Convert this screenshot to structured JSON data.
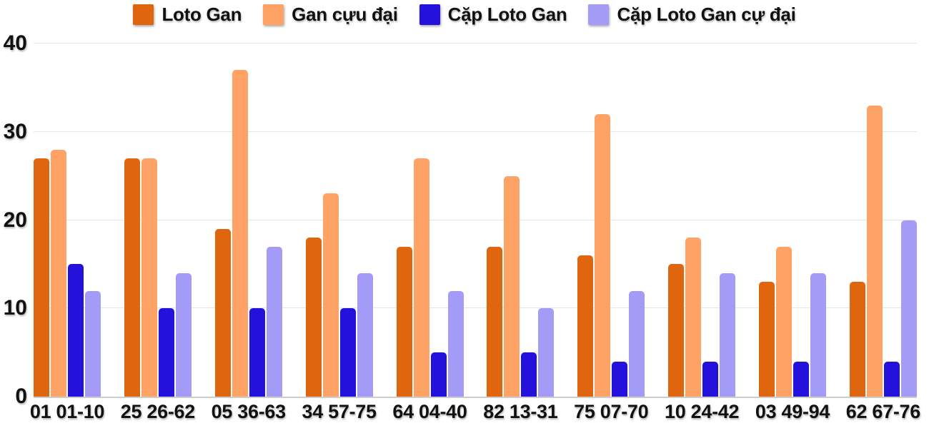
{
  "chart_data": {
    "type": "bar",
    "title": "",
    "xlabel": "",
    "ylabel": "",
    "categories": [
      "01 01-10",
      "25 26-62",
      "05 36-63",
      "34 57-75",
      "64 04-40",
      "82 13-31",
      "75 07-70",
      "10 24-42",
      "03 49-94",
      "62 67-76"
    ],
    "series": [
      {
        "name": "Loto Gan",
        "slug": "loto-gan",
        "color": "#E0650F",
        "values": [
          27,
          27,
          19,
          18,
          17,
          17,
          16,
          15,
          13,
          13
        ]
      },
      {
        "name": "Gan cựu đại",
        "slug": "gan-cuu-dai",
        "color": "#FFA266",
        "values": [
          28,
          27,
          37,
          23,
          27,
          25,
          32,
          18,
          17,
          33
        ]
      },
      {
        "name": "Cặp Loto Gan",
        "slug": "cap-loto-gan",
        "color": "#2412DC",
        "values": [
          15,
          10,
          10,
          10,
          5,
          5,
          4,
          4,
          4,
          4
        ]
      },
      {
        "name": "Cặp Loto Gan cự đại",
        "slug": "cap-loto-gan-cu-dai",
        "color": "#A39BF5",
        "values": [
          12,
          14,
          17,
          14,
          12,
          10,
          12,
          14,
          14,
          20
        ]
      }
    ],
    "ylim": [
      0,
      40
    ],
    "yticks": [
      0,
      10,
      20,
      30,
      40
    ],
    "grid": true,
    "legend_position": "top",
    "colors": {
      "grid": "#E6E6E6",
      "axis": "#CCCCCC",
      "text": "#111111",
      "background": "#FFFFFF"
    }
  }
}
